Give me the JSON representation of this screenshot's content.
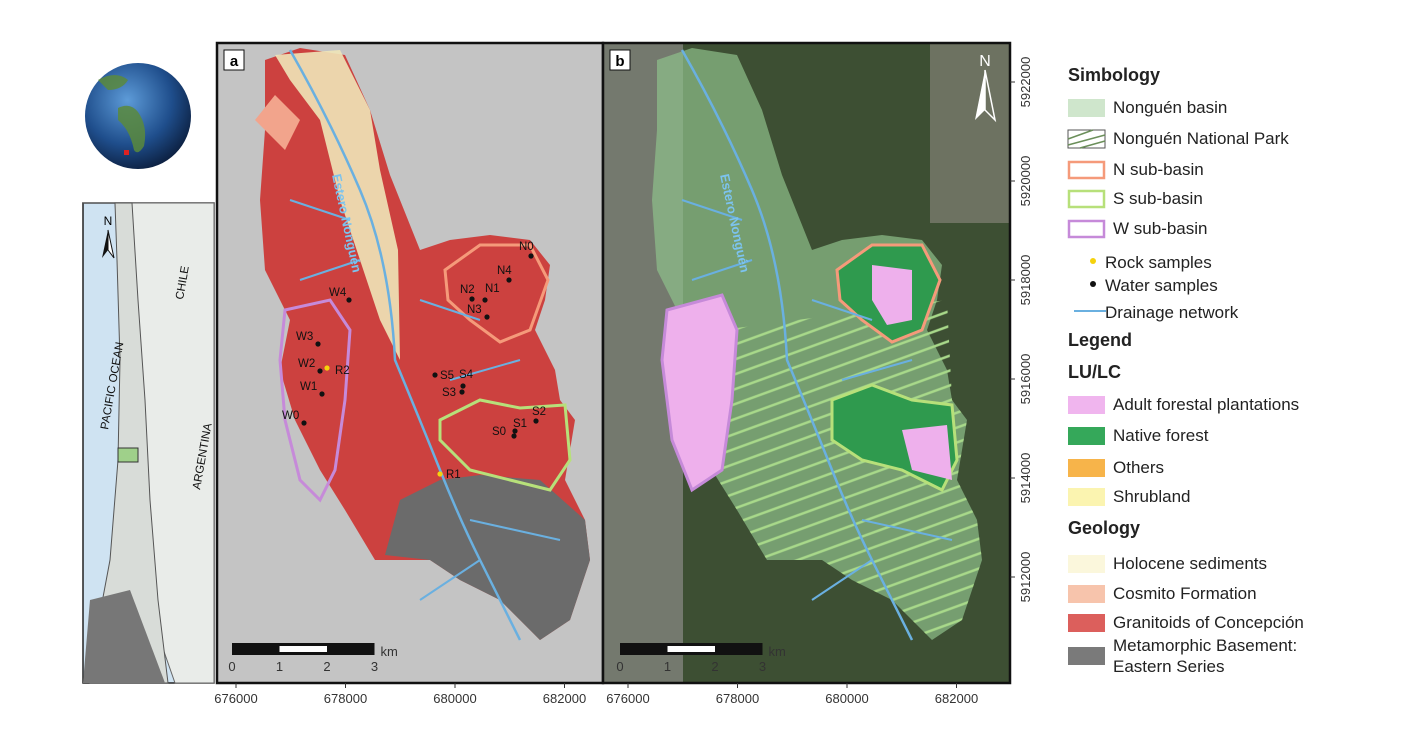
{
  "inset": {
    "north": "N",
    "labels": [
      "CHILE",
      "PACIFIC OCEAN",
      "ARGENTINA"
    ]
  },
  "panels": [
    {
      "label": "a",
      "river": "Estero Nonguén",
      "scale": {
        "ticks": [
          0,
          1,
          2,
          3
        ],
        "unit": "km"
      },
      "samples": [
        {
          "label": "N0",
          "color": "#111"
        },
        {
          "label": "N4",
          "color": "#111"
        },
        {
          "label": "N2",
          "color": "#111"
        },
        {
          "label": "N1",
          "color": "#111"
        },
        {
          "label": "N3",
          "color": "#111"
        },
        {
          "label": "W4",
          "color": "#111"
        },
        {
          "label": "W3",
          "color": "#111"
        },
        {
          "label": "W2",
          "color": "#111"
        },
        {
          "label": "R2",
          "color": "#f5d20c"
        },
        {
          "label": "W1",
          "color": "#111"
        },
        {
          "label": "W0",
          "color": "#111"
        },
        {
          "label": "S5",
          "color": "#111"
        },
        {
          "label": "S4",
          "color": "#111"
        },
        {
          "label": "S3",
          "color": "#111"
        },
        {
          "label": "S1",
          "color": "#111"
        },
        {
          "label": "S2",
          "color": "#111"
        },
        {
          "label": "S0",
          "color": "#111"
        },
        {
          "label": "R1",
          "color": "#f5d20c"
        }
      ]
    },
    {
      "label": "b",
      "river": "Estero Nonguén",
      "north": "N",
      "scale": {
        "ticks": [
          0,
          1,
          2,
          3
        ],
        "unit": "km"
      }
    }
  ],
  "axes": {
    "x_ticks": [
      676000,
      678000,
      680000,
      682000
    ],
    "y_ticks": [
      5912000,
      5914000,
      5916000,
      5918000,
      5920000,
      5922000
    ]
  },
  "legend": {
    "simbology": {
      "title": "Simbology",
      "items": [
        "Nonguén basin",
        "Nonguén National Park",
        "N sub-basin",
        "S sub-basin",
        "W sub-basin",
        "Rock samples",
        "Water samples",
        "Drainage network"
      ]
    },
    "title": "Legend",
    "lulc": {
      "title": "LU/LC",
      "items": [
        "Adult forestal plantations",
        "Native forest",
        "Others",
        "Shrubland"
      ]
    },
    "geology": {
      "title": "Geology",
      "items": [
        "Holocene sediments",
        "Cosmito Formation",
        "Granitoids of Concepción",
        "Metamorphic Basement: Eastern Series"
      ]
    }
  }
}
